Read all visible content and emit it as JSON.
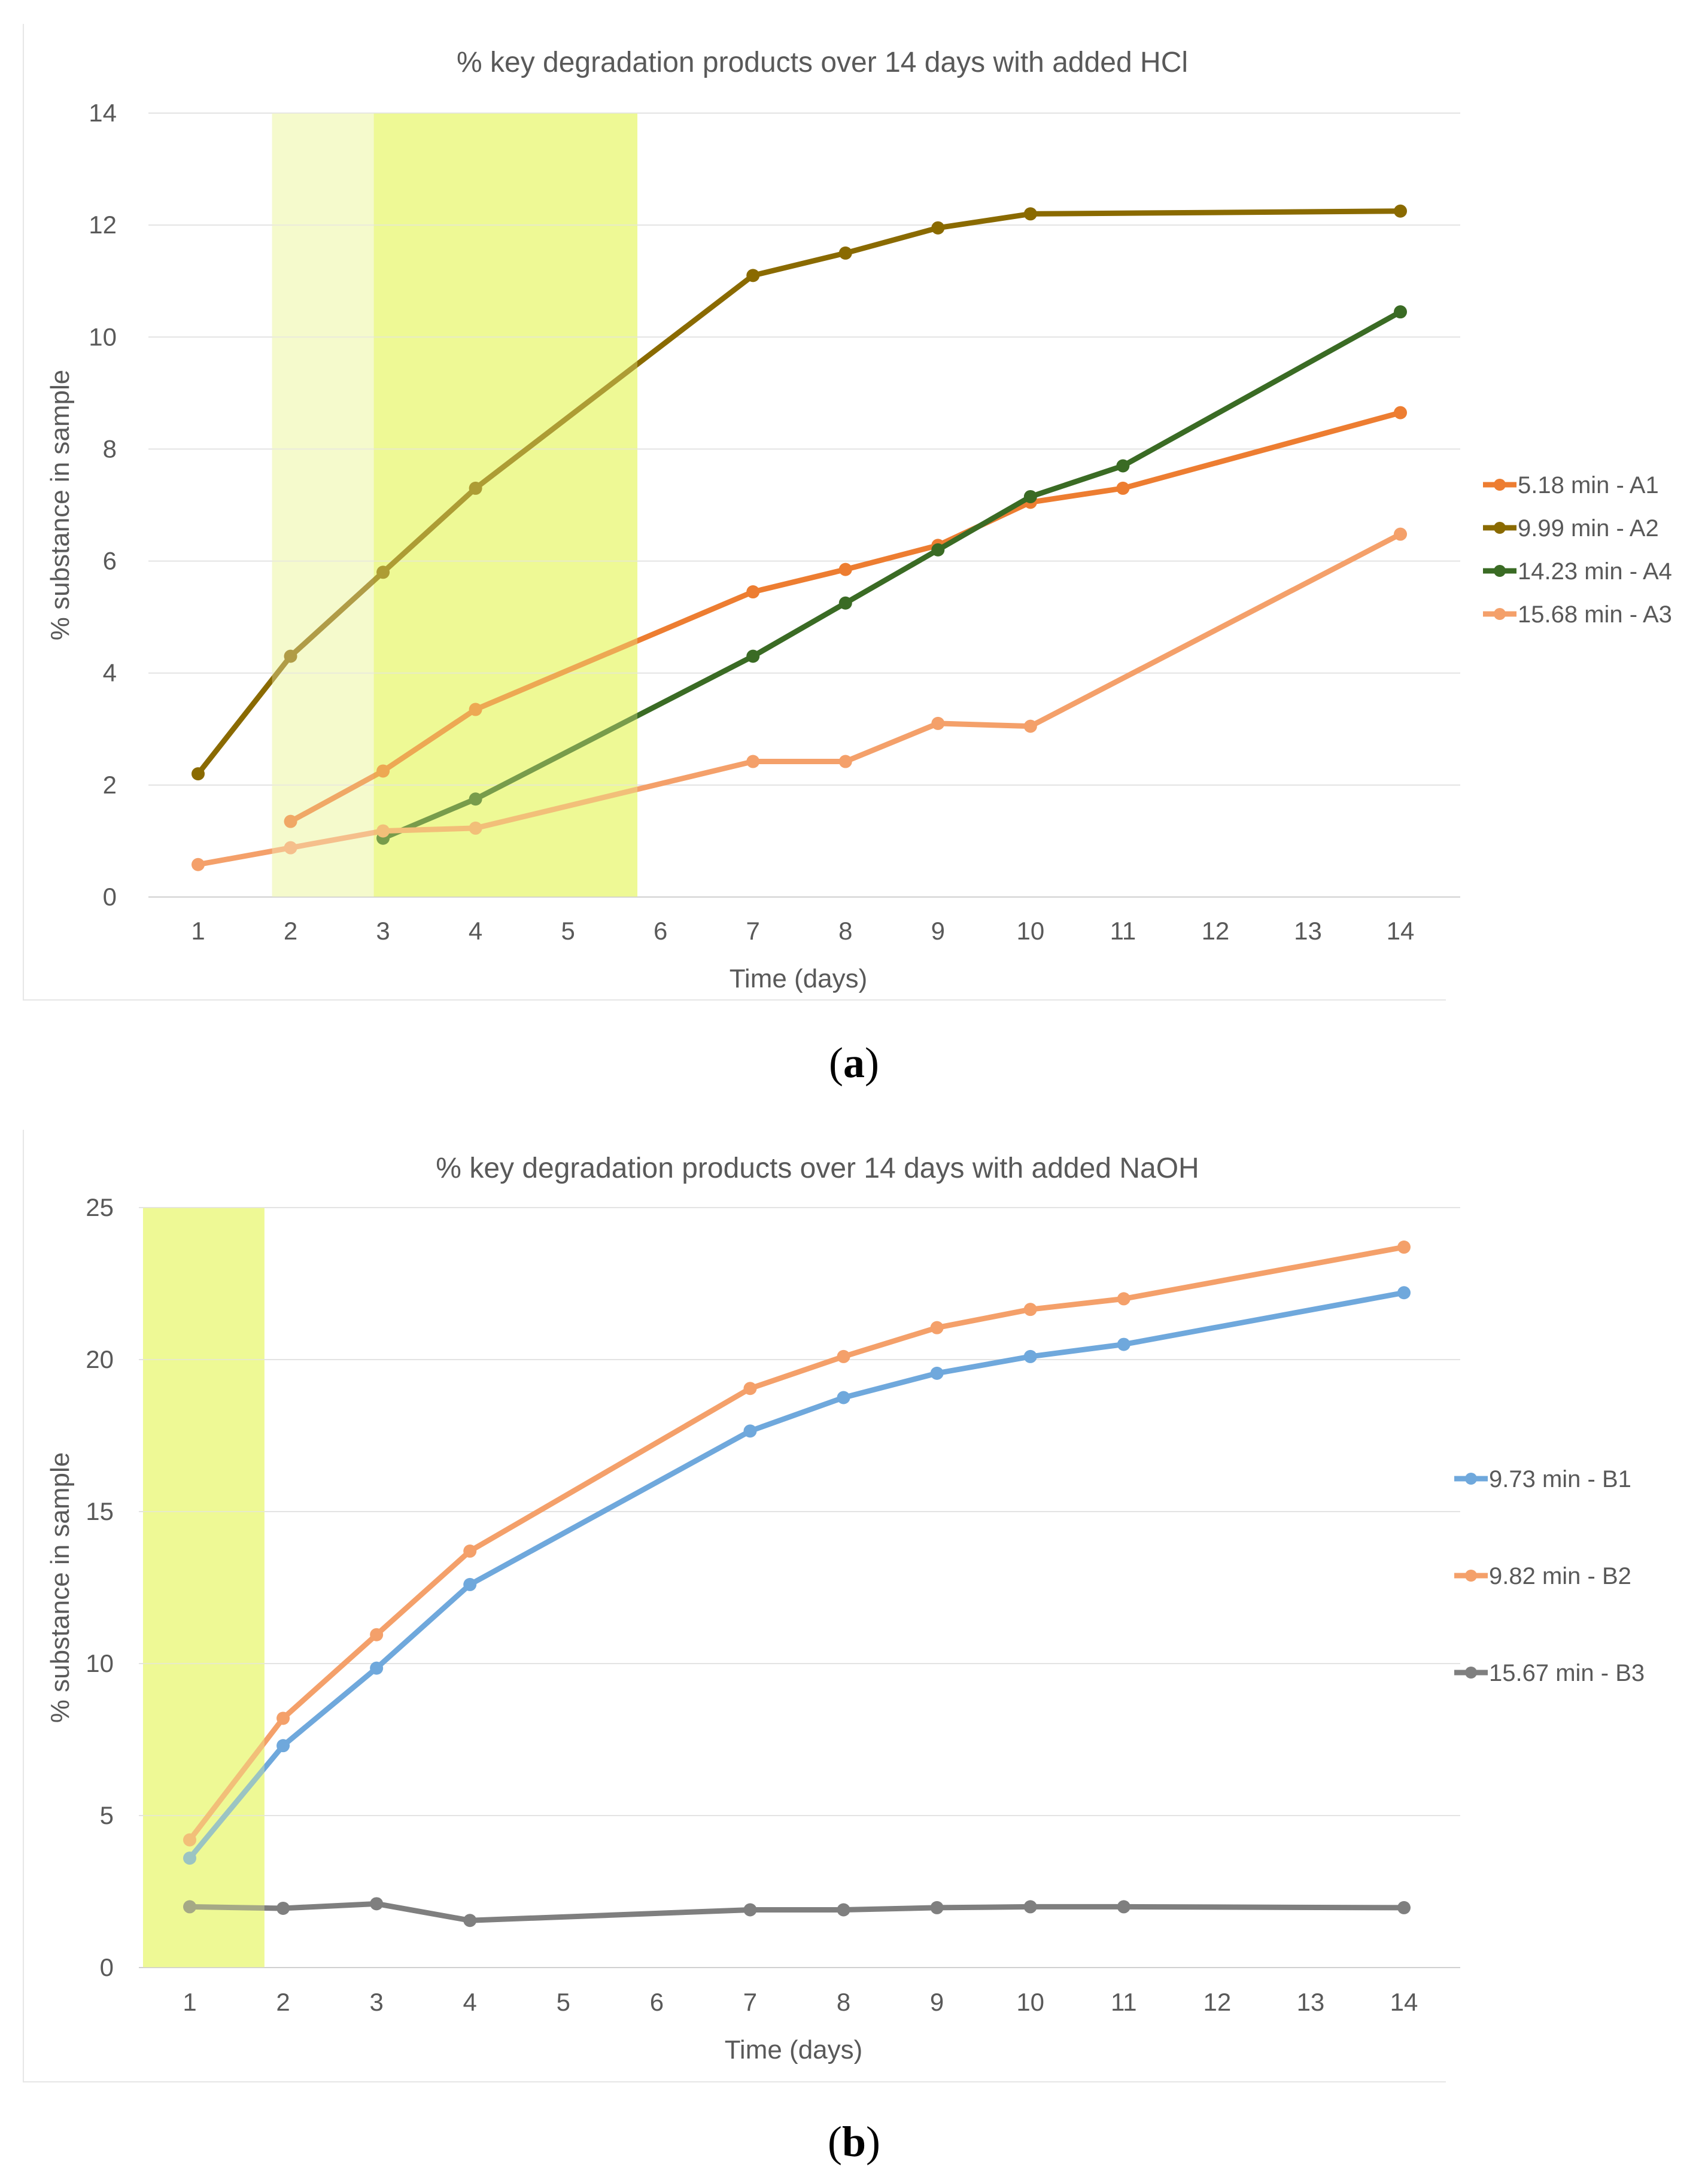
{
  "captions": {
    "a": "a",
    "b": "b"
  },
  "chart_data": [
    {
      "id": "a",
      "type": "line",
      "title": "% key degradation products over 14 days with added HCl",
      "xlabel": "Time (days)",
      "ylabel": "% substance in sample",
      "ylim": [
        0,
        14
      ],
      "yticks": [
        0,
        2,
        4,
        6,
        8,
        10,
        12,
        14
      ],
      "categories": [
        "1",
        "2",
        "3",
        "4",
        "5",
        "6",
        "7",
        "8",
        "9",
        "10",
        "11",
        "12",
        "13",
        "14"
      ],
      "highlight_bands": [
        {
          "from": 1.8,
          "to": 2.9,
          "color": "#f5facc"
        },
        {
          "from": 2.9,
          "to": 5.75,
          "color": "#eef995"
        }
      ],
      "legend_position": "right",
      "series": [
        {
          "name": "5.18 min - A1",
          "color": "#ed7d31",
          "points": [
            [
              2,
              1.35
            ],
            [
              3,
              2.25
            ],
            [
              4,
              3.35
            ],
            [
              7,
              5.45
            ],
            [
              8,
              5.85
            ],
            [
              9,
              6.28
            ],
            [
              10,
              7.05
            ],
            [
              11,
              7.3
            ],
            [
              14,
              8.65
            ]
          ]
        },
        {
          "name": "9.99 min - A2",
          "color": "#8a6a00",
          "points": [
            [
              1,
              2.2
            ],
            [
              2,
              4.3
            ],
            [
              3,
              5.8
            ],
            [
              4,
              7.3
            ],
            [
              7,
              11.1
            ],
            [
              8,
              11.5
            ],
            [
              9,
              11.95
            ],
            [
              10,
              12.2
            ],
            [
              14,
              12.25
            ]
          ]
        },
        {
          "name": "14.23 min - A4",
          "color": "#3a6b24",
          "points": [
            [
              3,
              1.05
            ],
            [
              4,
              1.75
            ],
            [
              7,
              4.3
            ],
            [
              8,
              5.25
            ],
            [
              9,
              6.2
            ],
            [
              10,
              7.15
            ],
            [
              11,
              7.7
            ],
            [
              14,
              10.45
            ]
          ]
        },
        {
          "name": "15.68 min - A3",
          "color": "#f4a06a",
          "points": [
            [
              1,
              0.58
            ],
            [
              2,
              0.88
            ],
            [
              3,
              1.18
            ],
            [
              4,
              1.23
            ],
            [
              7,
              2.42
            ],
            [
              8,
              2.42
            ],
            [
              9,
              3.1
            ],
            [
              10,
              3.05
            ],
            [
              14,
              6.48
            ]
          ]
        }
      ]
    },
    {
      "id": "b",
      "type": "line",
      "title": "% key degradation products over 14 days with added NaOH",
      "xlabel": "Time (days)",
      "ylabel": "% substance in sample",
      "ylim": [
        0,
        25
      ],
      "yticks": [
        0,
        5,
        10,
        15,
        20,
        25
      ],
      "categories": [
        "1",
        "2",
        "3",
        "4",
        "5",
        "6",
        "7",
        "8",
        "9",
        "10",
        "11",
        "12",
        "13",
        "14"
      ],
      "highlight_bands": [
        {
          "from": 0.5,
          "to": 1.8,
          "color": "#eef995"
        }
      ],
      "legend_position": "right",
      "series": [
        {
          "name": "9.73 min - B1",
          "color": "#6fa8dc",
          "points": [
            [
              1,
              3.6
            ],
            [
              2,
              7.3
            ],
            [
              3,
              9.85
            ],
            [
              4,
              12.6
            ],
            [
              7,
              17.65
            ],
            [
              8,
              18.75
            ],
            [
              9,
              19.55
            ],
            [
              10,
              20.1
            ],
            [
              11,
              20.5
            ],
            [
              14,
              22.2
            ]
          ]
        },
        {
          "name": "9.82 min - B2",
          "color": "#f4a06a",
          "points": [
            [
              1,
              4.2
            ],
            [
              2,
              8.2
            ],
            [
              3,
              10.95
            ],
            [
              4,
              13.7
            ],
            [
              7,
              19.05
            ],
            [
              8,
              20.1
            ],
            [
              9,
              21.05
            ],
            [
              10,
              21.65
            ],
            [
              11,
              22.0
            ],
            [
              14,
              23.7
            ]
          ]
        },
        {
          "name": "15.67 min - B3",
          "color": "#7f7f7f",
          "points": [
            [
              1,
              2.0
            ],
            [
              2,
              1.95
            ],
            [
              3,
              2.1
            ],
            [
              4,
              1.55
            ],
            [
              7,
              1.9
            ],
            [
              8,
              1.9
            ],
            [
              9,
              1.97
            ],
            [
              10,
              2.0
            ],
            [
              11,
              2.0
            ],
            [
              14,
              1.97
            ]
          ]
        }
      ]
    }
  ]
}
